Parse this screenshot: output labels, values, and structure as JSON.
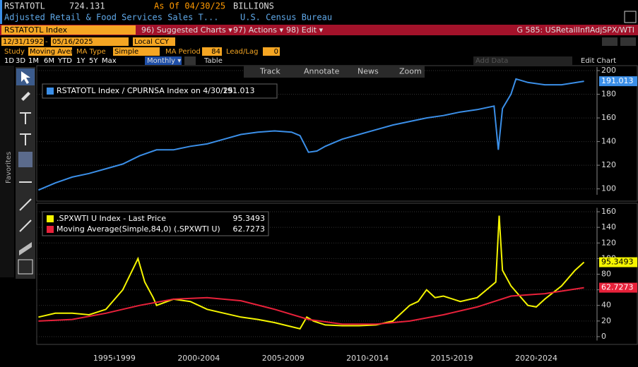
{
  "header": {
    "ticker": "RSTATOTL",
    "last": "724.131",
    "asof": "As Of 04/30/25",
    "units": "BILLIONS",
    "description": "Adjusted Retail & Food Services Sales T...",
    "source": "U.S. Census Bureau"
  },
  "menu": {
    "security": "RSTATOTL Index",
    "suggested": "96) Suggested Charts ▾",
    "actions": "97) Actions ▾",
    "edit": "98) Edit ▾",
    "chart_name": "G 585: USRetailInflAdjSPX/WTI"
  },
  "range": {
    "start": "12/31/1992",
    "end": "05/16/2025",
    "currency": "Local CCY"
  },
  "study": {
    "study_label": "Study",
    "study": "Moving Aver",
    "ma_type_label": "MA Type",
    "ma_type": "Simple",
    "ma_period_label": "MA Period",
    "ma_period": "84",
    "lead_label": "Lead/Lag",
    "lead": "0"
  },
  "periods": [
    "1D",
    "3D",
    "1M",
    "6M",
    "YTD",
    "1Y",
    "5Y",
    "Max"
  ],
  "frequency": "Monthly ▾",
  "table": "Table",
  "add_data": "Add Data",
  "edit_chart": "Edit Chart",
  "tools": [
    "Track",
    "Annotate",
    "News",
    "Zoom"
  ],
  "favorites": "Favorites",
  "chart_data": [
    {
      "type": "line",
      "ylim": [
        95,
        203
      ],
      "yticks": [
        100,
        120,
        140,
        160,
        180,
        200
      ],
      "xlim": [
        1992.9,
        2026.1
      ],
      "grid": true,
      "series": [
        {
          "name": "RSTATOTL Index / CPURNSA Index on 4/30/25",
          "color": "#3b8fe8",
          "x": [
            1993,
            1994,
            1995,
            1996,
            1997,
            1998,
            1999,
            2000,
            2001,
            2002,
            2003,
            2004,
            2005,
            2006,
            2007,
            2008,
            2008.5,
            2009,
            2009.5,
            2010,
            2011,
            2012,
            2013,
            2014,
            2015,
            2016,
            2017,
            2018,
            2019,
            2020,
            2020.25,
            2020.5,
            2021,
            2021.3,
            2022,
            2023,
            2024,
            2025.33
          ],
          "values": [
            99,
            105,
            110,
            113,
            117,
            121,
            128,
            133,
            133,
            136,
            138,
            142,
            146,
            148,
            149,
            148,
            145,
            131,
            132,
            136,
            142,
            146,
            150,
            154,
            157,
            160,
            162,
            165,
            167,
            170,
            133,
            168,
            180,
            193,
            190,
            188,
            188,
            191.013
          ]
        }
      ]
    },
    {
      "type": "line",
      "ylim": [
        -5,
        165
      ],
      "yticks": [
        0,
        20,
        40,
        60,
        80,
        100,
        120,
        140,
        160
      ],
      "xlim": [
        1992.9,
        2026.1
      ],
      "grid": true,
      "xticks": [
        {
          "value": 1997.5,
          "label": "1995-1999"
        },
        {
          "value": 2002.5,
          "label": "2000-2004"
        },
        {
          "value": 2007.5,
          "label": "2005-2009"
        },
        {
          "value": 2012.5,
          "label": "2010-2014"
        },
        {
          "value": 2017.5,
          "label": "2015-2019"
        },
        {
          "value": 2022.5,
          "label": "2020-2024"
        }
      ],
      "series": [
        {
          "name": ".SPXWTI U Index - Last Price",
          "color": "#f5f500",
          "x": [
            1993,
            1994,
            1995,
            1996,
            1997,
            1998,
            1998.9,
            1999.3,
            1999.8,
            2000,
            2001,
            2002,
            2003,
            2004,
            2005,
            2006,
            2007,
            2008.5,
            2008.9,
            2009.3,
            2010,
            2011,
            2012,
            2013,
            2014,
            2015,
            2015.5,
            2016,
            2016.5,
            2017,
            2018,
            2019,
            2020.1,
            2020.3,
            2020.5,
            2021,
            2022,
            2022.5,
            2023,
            2024,
            2024.8,
            2025.33
          ],
          "values": [
            25,
            30,
            30,
            28,
            35,
            60,
            100,
            70,
            50,
            40,
            48,
            45,
            35,
            30,
            25,
            22,
            18,
            10,
            25,
            20,
            15,
            14,
            14,
            15,
            20,
            40,
            45,
            60,
            50,
            52,
            45,
            50,
            70,
            155,
            85,
            65,
            40,
            38,
            48,
            65,
            85,
            95.3493
          ]
        },
        {
          "name": "Moving Average(Simple,84,0) (.SPXWTI U)",
          "color": "#e8213a",
          "x": [
            1993,
            1995,
            1997,
            1999,
            2001,
            2003,
            2005,
            2007,
            2009,
            2011,
            2013,
            2015,
            2017,
            2019,
            2021,
            2023,
            2025.33
          ],
          "values": [
            20,
            22,
            30,
            40,
            48,
            50,
            46,
            35,
            22,
            16,
            16,
            20,
            28,
            38,
            52,
            55,
            62.7273
          ]
        }
      ]
    }
  ]
}
